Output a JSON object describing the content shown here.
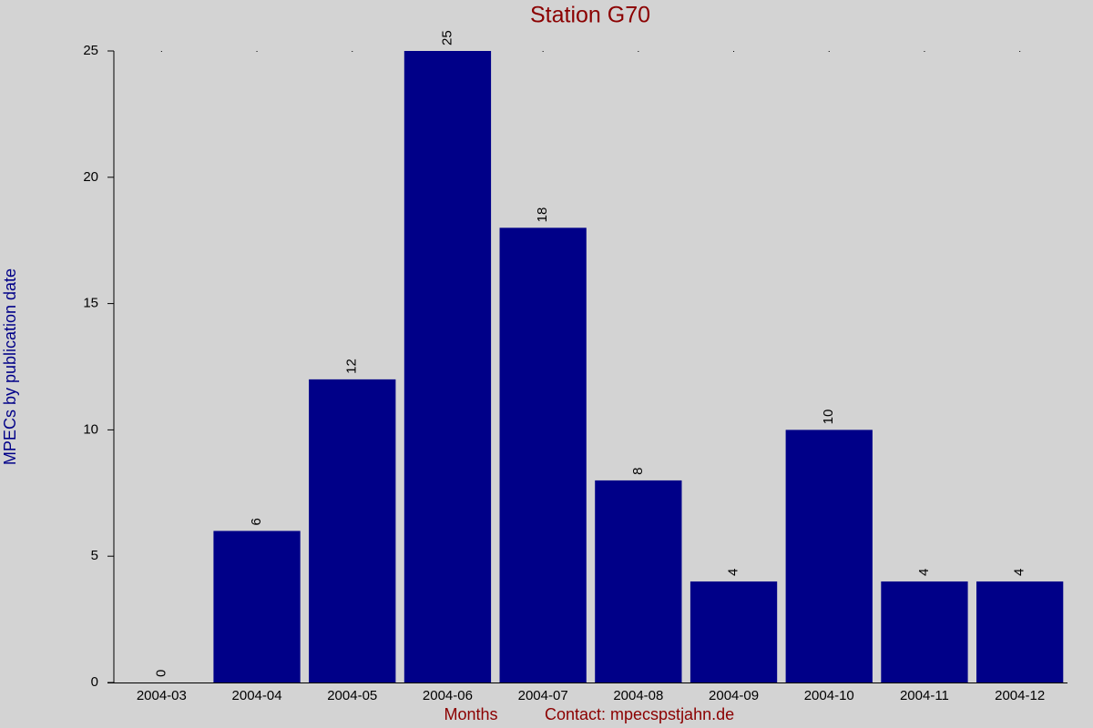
{
  "chart_data": {
    "type": "bar",
    "title": "Station G70",
    "y_label": "MPECs by publication date",
    "x_label": "Months",
    "footer": "Contact: mpecspstjahn.de",
    "categories": [
      "2004-03",
      "2004-04",
      "2004-05",
      "2004-06",
      "2004-07",
      "2004-08",
      "2004-09",
      "2004-10",
      "2004-11",
      "2004-12"
    ],
    "values": [
      0,
      6,
      12,
      25,
      18,
      8,
      4,
      10,
      4,
      4
    ],
    "color": "#000088",
    "ylim": [
      0,
      25
    ],
    "yticks": [
      0,
      5,
      10,
      15,
      20,
      25
    ],
    "grid": false,
    "value_labels_shown": true
  }
}
